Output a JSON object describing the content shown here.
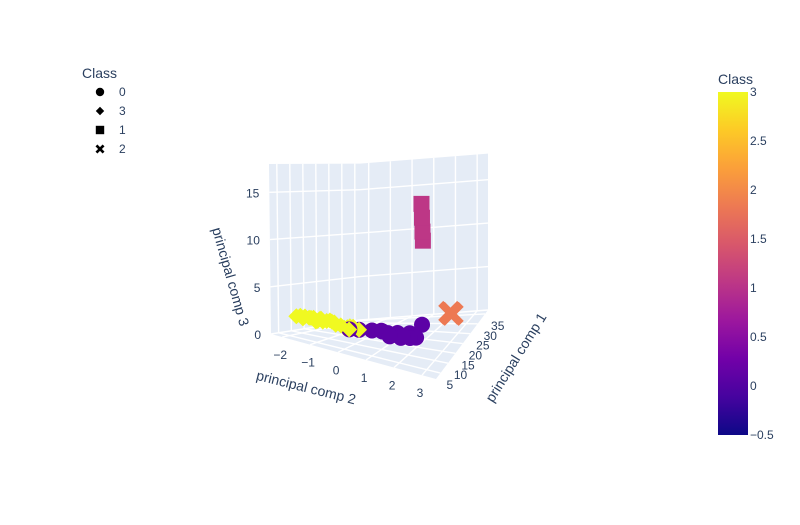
{
  "chart_data": {
    "type": "scatter3d",
    "axes": {
      "x": {
        "title": "principal comp 1",
        "ticks": [
          "5",
          "10",
          "15",
          "20",
          "25",
          "30",
          "35"
        ],
        "range": [
          2,
          37
        ]
      },
      "y": {
        "title": "principal comp 2",
        "ticks": [
          "−2",
          "−1",
          "0",
          "1",
          "2",
          "3"
        ],
        "range": [
          -2.4,
          3.5
        ]
      },
      "z": {
        "title": "principal comp 3",
        "ticks": [
          "0",
          "5",
          "10",
          "15"
        ],
        "range": [
          0,
          18
        ]
      }
    },
    "legend": {
      "title": "Class",
      "entries": [
        {
          "label": "0",
          "symbol": "circle"
        },
        {
          "label": "3",
          "symbol": "diamond"
        },
        {
          "label": "1",
          "symbol": "square"
        },
        {
          "label": "2",
          "symbol": "x"
        }
      ]
    },
    "colorbar": {
      "title": "Class",
      "range": [
        -0.5,
        3
      ],
      "ticks": [
        "3",
        "2.5",
        "2",
        "1.5",
        "1",
        "0.5",
        "0",
        "−0.5"
      ],
      "colorscale": [
        "#0d0887",
        "#46039f",
        "#7201a8",
        "#9c179e",
        "#bd3786",
        "#d8576b",
        "#ed7953",
        "#fb9f3a",
        "#fdca26",
        "#f0f921"
      ]
    },
    "series": [
      {
        "class": 0,
        "symbol": "circle",
        "color": "#5c01a6",
        "points": [
          [
            3.5,
            0.3,
            2.5
          ],
          [
            4.2,
            0.6,
            2.6
          ],
          [
            5.2,
            1.0,
            2.7
          ],
          [
            5.8,
            1.3,
            2.8
          ],
          [
            6.4,
            1.5,
            2.6
          ],
          [
            7.2,
            1.8,
            2.7
          ],
          [
            6.0,
            2.0,
            2.5
          ],
          [
            5.0,
            1.4,
            2.9
          ],
          [
            4.4,
            1.7,
            2.7
          ],
          [
            6.6,
            2.3,
            2.6
          ],
          [
            7.0,
            2.5,
            2.7
          ],
          [
            5.6,
            2.1,
            2.8
          ],
          [
            8.0,
            2.2,
            2.8
          ],
          [
            9.0,
            2.6,
            3.8
          ]
        ]
      },
      {
        "class": 3,
        "symbol": "diamond",
        "color": "#f0f921",
        "points": [
          [
            2.2,
            -1.5,
            2.6
          ],
          [
            2.5,
            -1.0,
            2.8
          ],
          [
            2.8,
            -0.6,
            2.7
          ],
          [
            3.1,
            -0.3,
            2.9
          ],
          [
            3.4,
            0.0,
            2.7
          ],
          [
            3.8,
            0.3,
            2.8
          ],
          [
            4.2,
            0.6,
            2.6
          ],
          [
            2.6,
            -1.3,
            2.5
          ],
          [
            3.0,
            -0.8,
            2.6
          ],
          [
            3.3,
            -0.5,
            2.8
          ],
          [
            3.6,
            -0.2,
            2.6
          ],
          [
            2.4,
            -0.9,
            2.9
          ],
          [
            2.9,
            -1.1,
            2.7
          ],
          [
            3.2,
            -0.7,
            2.9
          ],
          [
            3.7,
            0.1,
            2.5
          ],
          [
            4.0,
            0.4,
            2.8
          ],
          [
            2.3,
            -1.2,
            2.8
          ],
          [
            2.7,
            -1.4,
            2.7
          ],
          [
            3.5,
            -0.4,
            2.9
          ],
          [
            3.9,
            0.2,
            2.6
          ],
          [
            2.6,
            -0.7,
            2.9
          ],
          [
            3.0,
            -0.2,
            2.9
          ],
          [
            3.4,
            0.3,
            2.5
          ],
          [
            2.2,
            -0.8,
            2.6
          ]
        ]
      },
      {
        "class": 1,
        "symbol": "square",
        "color": "#bd3786",
        "points": [
          [
            3.5,
            3.0,
            14.0
          ],
          [
            3.3,
            3.0,
            15.0
          ],
          [
            3.1,
            3.0,
            16.5
          ],
          [
            2.9,
            3.0,
            18.0
          ]
        ]
      },
      {
        "class": 2,
        "symbol": "x",
        "color": "#ed7953",
        "points": [
          [
            34.0,
            2.0,
            0.5
          ],
          [
            33.6,
            2.1,
            0.45
          ]
        ]
      }
    ]
  }
}
